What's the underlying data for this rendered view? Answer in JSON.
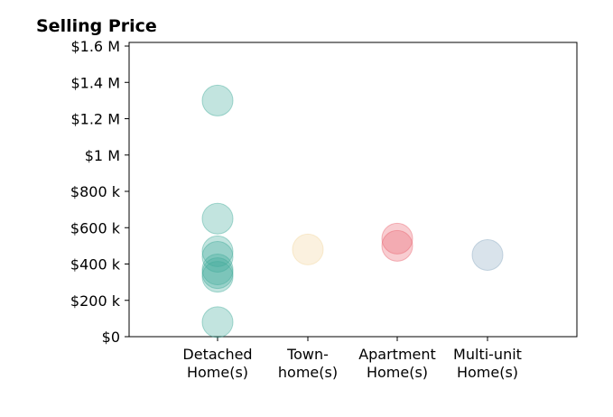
{
  "chart_data": {
    "type": "scatter",
    "title": "Selling Price",
    "xlabel": "",
    "ylabel": "",
    "ylim": [
      0,
      1620000
    ],
    "grid": false,
    "categories": [
      [
        "Detached",
        "Home(s)"
      ],
      [
        "Town-",
        "home(s)"
      ],
      [
        "Apartment",
        "Home(s)"
      ],
      [
        "Multi-unit",
        "Home(s)"
      ]
    ],
    "y_ticks": [
      {
        "value": 0,
        "label": "$0"
      },
      {
        "value": 200000,
        "label": "$200 k"
      },
      {
        "value": 400000,
        "label": "$400 k"
      },
      {
        "value": 600000,
        "label": "$600 k"
      },
      {
        "value": 800000,
        "label": "$800 k"
      },
      {
        "value": 1000000,
        "label": "$1 M"
      },
      {
        "value": 1200000,
        "label": "$1.2 M"
      },
      {
        "value": 1400000,
        "label": "$1.4 M"
      },
      {
        "value": 1600000,
        "label": "$1.6 M"
      }
    ],
    "series": [
      {
        "category_index": 0,
        "color": "#41ab9a",
        "values": [
          1300000,
          650000,
          470000,
          440000,
          370000,
          350000,
          330000,
          80000
        ]
      },
      {
        "category_index": 1,
        "color": "#f2d49b",
        "values": [
          480000
        ]
      },
      {
        "category_index": 2,
        "color": "#e8636f",
        "values": [
          540000,
          500000
        ]
      },
      {
        "category_index": 3,
        "color": "#8aa9c1",
        "values": [
          450000
        ]
      }
    ]
  }
}
